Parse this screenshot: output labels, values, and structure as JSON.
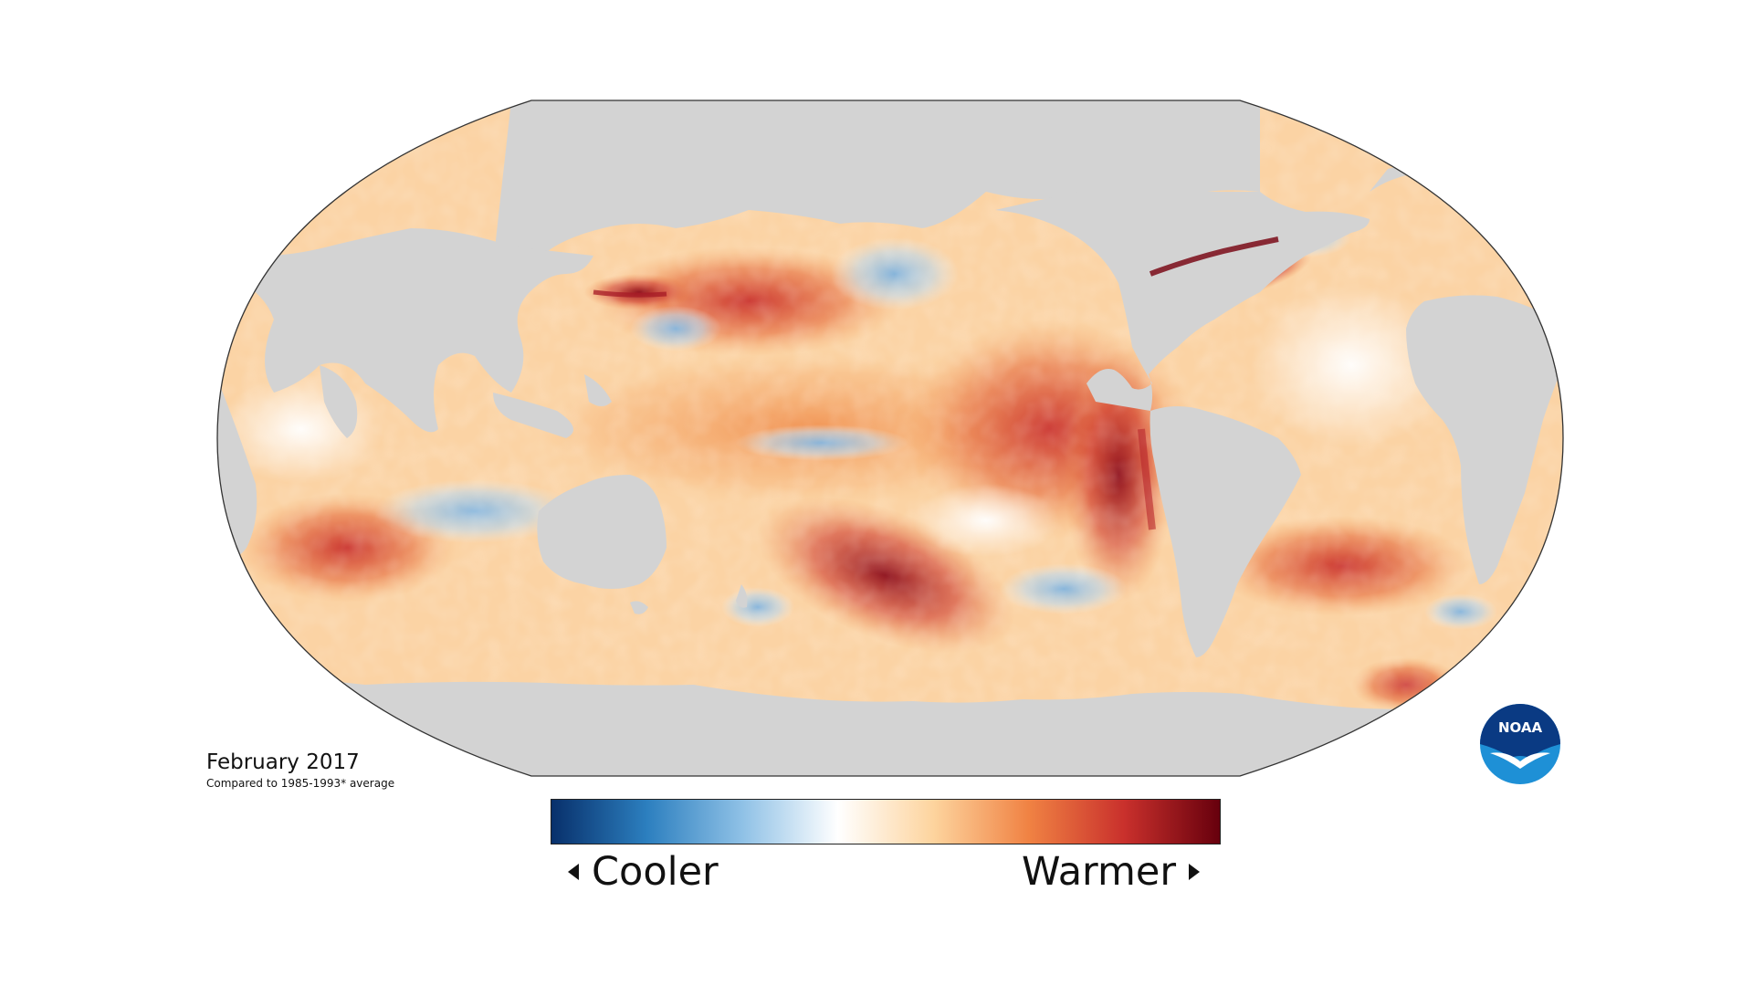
{
  "map": {
    "projection": "Robinson",
    "land_color": "#d3d3d3",
    "outline_color": "#333333",
    "ocean_ramp": [
      "#08306b",
      "#2b7bb9",
      "#a6cdec",
      "#ffffff",
      "#fcd9a6",
      "#f08c4a",
      "#cf3c2f",
      "#67000d"
    ],
    "regions": [
      "Pacific Ocean",
      "Atlantic Ocean",
      "Indian Ocean",
      "Southern Ocean",
      "Americas",
      "Africa",
      "Eurasia",
      "Australia",
      "Antarctica",
      "Greenland"
    ]
  },
  "caption": {
    "title": "February 2017",
    "subtitle": "Compared to 1985-1993* average"
  },
  "legend": {
    "cooler_label": "Cooler",
    "warmer_label": "Warmer",
    "gradient_colors": [
      "#08306b",
      "#2c7fbf",
      "#8fc1e6",
      "#ffffff",
      "#fdd49e",
      "#f08243",
      "#c9302c",
      "#67000d"
    ]
  },
  "logo": {
    "text": "NOAA",
    "colors": [
      "#0a3a83",
      "#1e90d6",
      "#ffffff"
    ]
  }
}
